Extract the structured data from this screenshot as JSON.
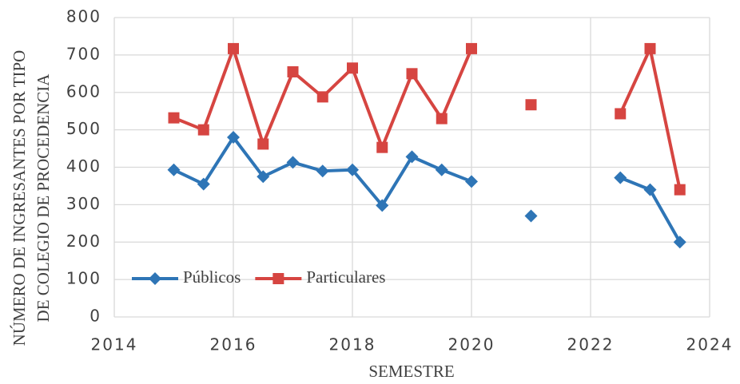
{
  "chart_data": {
    "type": "line",
    "xlabel": "SEMESTRE",
    "ylabel": [
      "NÚMERO DE INGRESANTES POR TIPO",
      "DE COLEGIO DE PROCEDENCIA"
    ],
    "x": [
      2015,
      2015.5,
      2016,
      2016.5,
      2017,
      2017.5,
      2018,
      2018.5,
      2019,
      2019.5,
      2020,
      2020.5,
      2021,
      2021.5,
      2022,
      2022.5,
      2023,
      2023.5
    ],
    "series": [
      {
        "name": "Públicos",
        "color": "#2e75b6",
        "marker": "diamond",
        "values": [
          393,
          355,
          480,
          375,
          413,
          390,
          393,
          298,
          428,
          393,
          362,
          null,
          270,
          null,
          null,
          372,
          340,
          200
        ]
      },
      {
        "name": "Particulares",
        "color": "#d64541",
        "marker": "square",
        "values": [
          532,
          500,
          717,
          462,
          655,
          588,
          665,
          453,
          650,
          530,
          717,
          null,
          567,
          null,
          null,
          543,
          717,
          340
        ]
      }
    ],
    "xlim": [
      2014,
      2024
    ],
    "xticks": [
      2014,
      2016,
      2018,
      2020,
      2022,
      2024
    ],
    "ylim": [
      0,
      800
    ],
    "yticks": [
      0,
      100,
      200,
      300,
      400,
      500,
      600,
      700,
      800
    ],
    "grid": true,
    "legend": "lower-left"
  }
}
